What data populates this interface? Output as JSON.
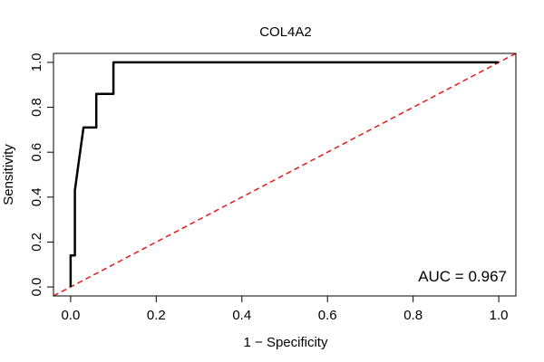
{
  "chart_data": {
    "type": "line",
    "title": "COL4A2",
    "xlabel": "1 − Specificity",
    "ylabel": "Sensitivity",
    "xlim": [
      -0.04,
      1.04
    ],
    "ylim": [
      -0.04,
      1.04
    ],
    "x_ticks": [
      0.0,
      0.2,
      0.4,
      0.6,
      0.8,
      1.0
    ],
    "x_tick_labels": [
      "0.0",
      "0.2",
      "0.4",
      "0.6",
      "0.8",
      "1.0"
    ],
    "y_ticks": [
      0.0,
      0.2,
      0.4,
      0.6,
      0.8,
      1.0
    ],
    "y_tick_labels": [
      "0.0",
      "0.2",
      "0.4",
      "0.6",
      "0.8",
      "1.0"
    ],
    "grid": false,
    "annotation": "AUC = 0.967",
    "series": [
      {
        "color": "#000000",
        "style": "solid",
        "x": [
          0.0,
          0.0,
          0.0,
          0.0,
          0.01,
          0.01,
          0.02,
          0.02,
          0.03,
          0.03,
          0.04,
          0.06,
          0.06,
          0.1,
          0.1,
          1.0
        ],
        "y": [
          0.0,
          0.0,
          0.14,
          0.14,
          0.14,
          0.43,
          0.57,
          0.57,
          0.71,
          0.71,
          0.71,
          0.71,
          0.86,
          0.86,
          1.0,
          1.0
        ]
      },
      {
        "color": "#e41a1c",
        "style": "dashed",
        "x": [
          -0.04,
          1.04
        ],
        "y": [
          -0.04,
          1.04
        ]
      }
    ]
  }
}
